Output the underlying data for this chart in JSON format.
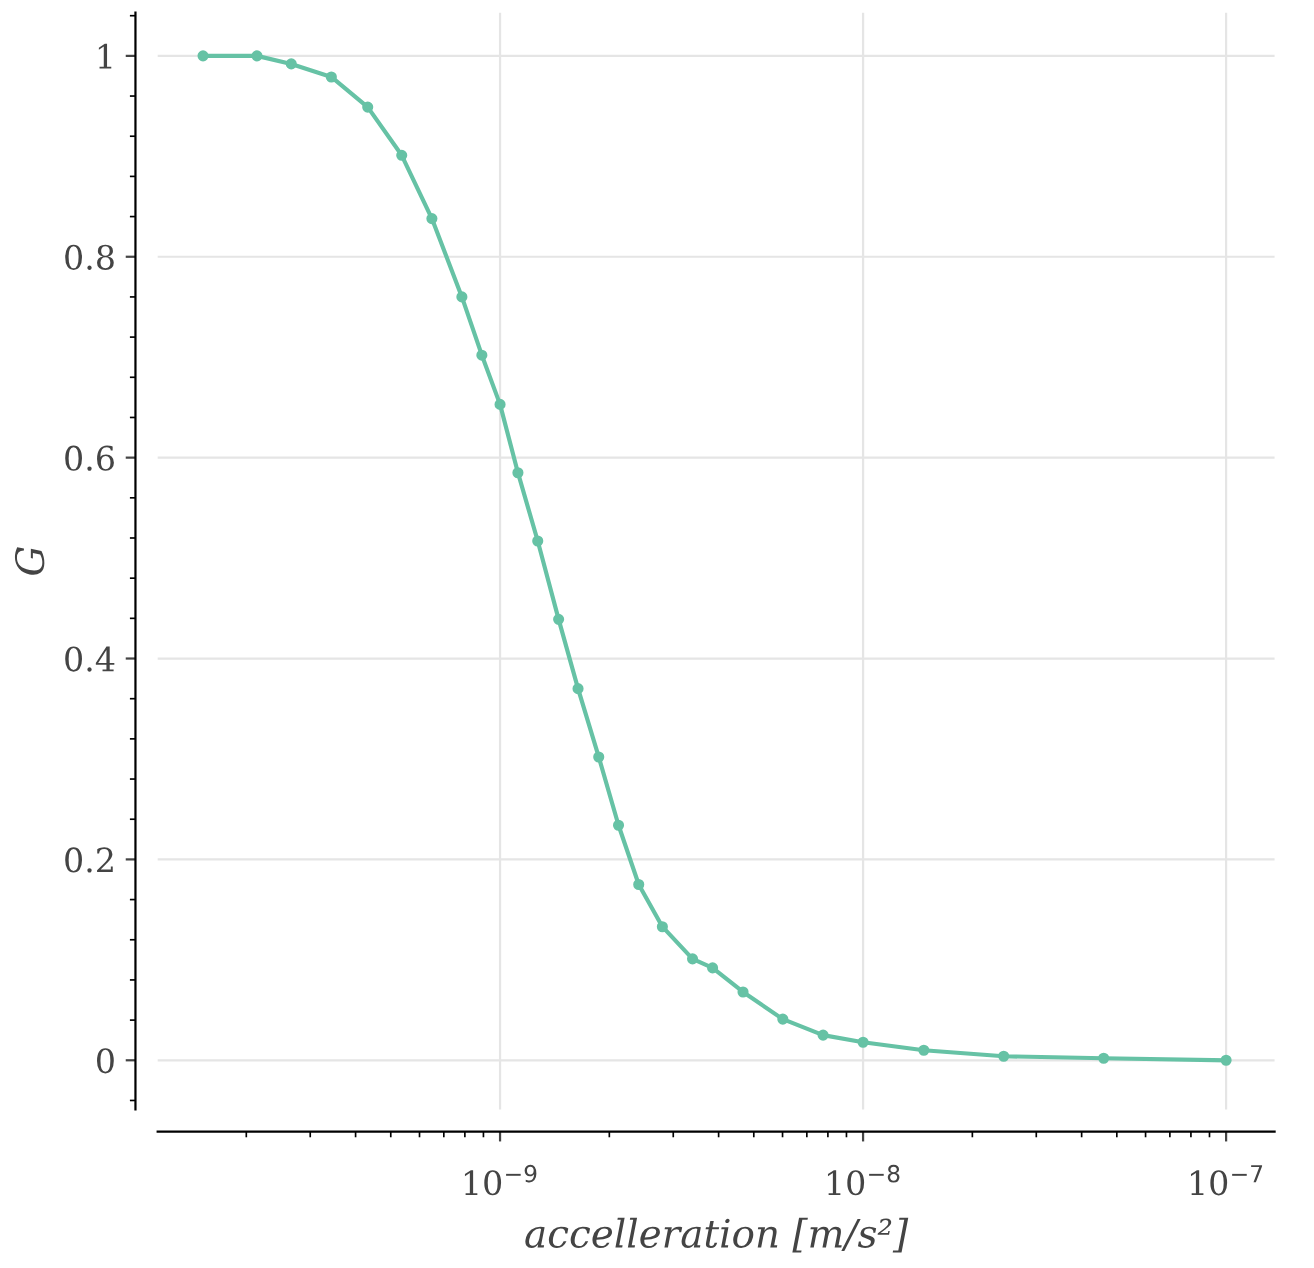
{
  "chart_data": {
    "type": "line",
    "xlabel": "accelleration [m/s²]",
    "ylabel": "G",
    "series": [
      {
        "color": "#66c2a5",
        "x": [
          1.52e-10,
          2.14e-10,
          2.66e-10,
          3.43e-10,
          4.32e-10,
          5.36e-10,
          6.49e-10,
          7.85e-10,
          8.91e-10,
          1e-09,
          1.12e-09,
          1.27e-09,
          1.45e-09,
          1.64e-09,
          1.87e-09,
          2.12e-09,
          2.41e-09,
          2.8e-09,
          3.39e-09,
          3.85e-09,
          4.67e-09,
          6.01e-09,
          7.76e-09,
          1e-08,
          1.47e-08,
          2.44e-08,
          4.6e-08,
          1e-07
        ],
        "values": [
          1.0,
          1.0,
          0.992,
          0.979,
          0.949,
          0.901,
          0.838,
          0.76,
          0.702,
          0.653,
          0.585,
          0.517,
          0.439,
          0.37,
          0.302,
          0.234,
          0.175,
          0.133,
          0.101,
          0.092,
          0.068,
          0.041,
          0.025,
          0.018,
          0.01,
          0.004,
          0.002,
          0.0
        ]
      }
    ],
    "log": "x",
    "xlim": [
      1.14e-10,
      1.36e-07
    ],
    "ylim": [
      -0.049,
      1.043
    ],
    "xticks": [
      {
        "value": 1e-09,
        "label": "10$^{−9}$"
      },
      {
        "value": 1e-08,
        "label": "10$^{−8}$"
      },
      {
        "value": 1e-07,
        "label": "10$^{−7}$"
      }
    ],
    "yticks": [
      {
        "value": 0,
        "label": "0"
      },
      {
        "value": 0.2,
        "label": "0.2"
      },
      {
        "value": 0.4,
        "label": "0.4"
      },
      {
        "value": 0.6,
        "label": "0.6"
      },
      {
        "value": 0.8,
        "label": "0.8"
      },
      {
        "value": 1,
        "label": "1"
      }
    ],
    "grid": true,
    "marker": "circle",
    "line_style": "solid"
  }
}
